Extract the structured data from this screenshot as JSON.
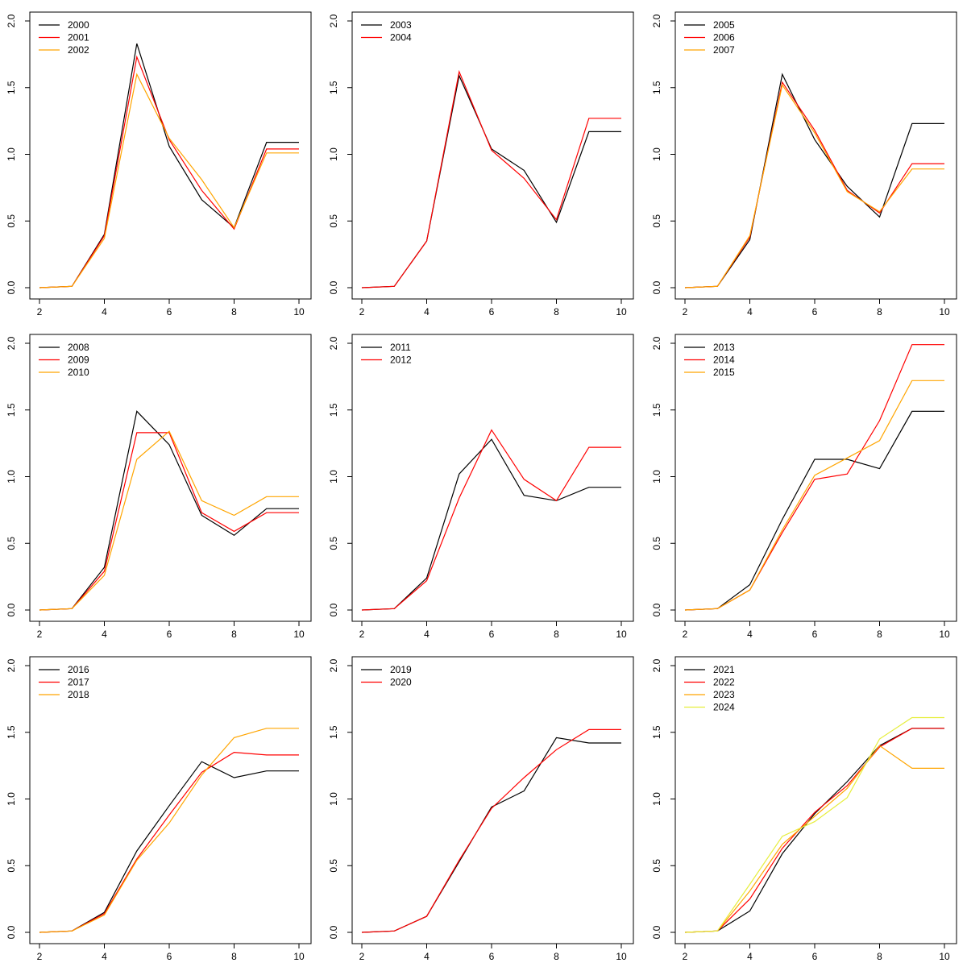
{
  "colors": {
    "black": "#000000",
    "red": "#ff0000",
    "orange": "#ffa500",
    "yellow": "#e6ee3c"
  },
  "chart_data": [
    {
      "type": "line",
      "x": [
        2,
        3,
        4,
        5,
        6,
        7,
        8,
        9,
        10
      ],
      "xlim": [
        2,
        10
      ],
      "ylim": [
        0,
        2
      ],
      "xticks": [
        2,
        4,
        6,
        8,
        10
      ],
      "yticks": [
        "0.0",
        "0.5",
        "1.0",
        "1.5",
        "2.0"
      ],
      "legend_position": "top-left",
      "grid": false,
      "series": [
        {
          "name": "2000",
          "color": "#000000",
          "values": [
            0.0,
            0.01,
            0.4,
            1.83,
            1.06,
            0.66,
            0.45,
            1.09,
            1.09
          ]
        },
        {
          "name": "2001",
          "color": "#ff0000",
          "values": [
            0.0,
            0.01,
            0.39,
            1.73,
            1.11,
            0.73,
            0.44,
            1.04,
            1.04
          ]
        },
        {
          "name": "2002",
          "color": "#ffa500",
          "values": [
            0.0,
            0.01,
            0.37,
            1.6,
            1.12,
            0.81,
            0.45,
            1.01,
            1.01
          ]
        }
      ]
    },
    {
      "type": "line",
      "x": [
        2,
        3,
        4,
        5,
        6,
        7,
        8,
        9,
        10
      ],
      "xlim": [
        2,
        10
      ],
      "ylim": [
        0,
        2
      ],
      "xticks": [
        2,
        4,
        6,
        8,
        10
      ],
      "yticks": [
        "0.0",
        "0.5",
        "1.0",
        "1.5",
        "2.0"
      ],
      "legend_position": "top-left",
      "grid": false,
      "series": [
        {
          "name": "2003",
          "color": "#000000",
          "values": [
            0.0,
            0.01,
            0.35,
            1.59,
            1.04,
            0.88,
            0.49,
            1.17,
            1.17
          ]
        },
        {
          "name": "2004",
          "color": "#ff0000",
          "values": [
            0.0,
            0.01,
            0.35,
            1.62,
            1.03,
            0.82,
            0.51,
            1.27,
            1.27
          ]
        }
      ]
    },
    {
      "type": "line",
      "x": [
        2,
        3,
        4,
        5,
        6,
        7,
        8,
        9,
        10
      ],
      "xlim": [
        2,
        10
      ],
      "ylim": [
        0,
        2
      ],
      "xticks": [
        2,
        4,
        6,
        8,
        10
      ],
      "yticks": [
        "0.0",
        "0.5",
        "1.0",
        "1.5",
        "2.0"
      ],
      "legend_position": "top-left",
      "grid": false,
      "series": [
        {
          "name": "2005",
          "color": "#000000",
          "values": [
            0.0,
            0.01,
            0.36,
            1.6,
            1.11,
            0.76,
            0.53,
            1.23,
            1.23
          ]
        },
        {
          "name": "2006",
          "color": "#ff0000",
          "values": [
            0.0,
            0.01,
            0.38,
            1.54,
            1.18,
            0.73,
            0.56,
            0.93,
            0.93
          ]
        },
        {
          "name": "2007",
          "color": "#ffa500",
          "values": [
            0.0,
            0.01,
            0.39,
            1.52,
            1.16,
            0.72,
            0.57,
            0.89,
            0.89
          ]
        }
      ]
    },
    {
      "type": "line",
      "x": [
        2,
        3,
        4,
        5,
        6,
        7,
        8,
        9,
        10
      ],
      "xlim": [
        2,
        10
      ],
      "ylim": [
        0,
        2
      ],
      "xticks": [
        2,
        4,
        6,
        8,
        10
      ],
      "yticks": [
        "0.0",
        "0.5",
        "1.0",
        "1.5",
        "2.0"
      ],
      "legend_position": "top-left",
      "grid": false,
      "series": [
        {
          "name": "2008",
          "color": "#000000",
          "values": [
            0.0,
            0.01,
            0.32,
            1.49,
            1.24,
            0.71,
            0.56,
            0.76,
            0.76
          ]
        },
        {
          "name": "2009",
          "color": "#ff0000",
          "values": [
            0.0,
            0.01,
            0.29,
            1.33,
            1.33,
            0.73,
            0.59,
            0.73,
            0.73
          ]
        },
        {
          "name": "2010",
          "color": "#ffa500",
          "values": [
            0.0,
            0.01,
            0.26,
            1.13,
            1.34,
            0.82,
            0.71,
            0.85,
            0.85
          ]
        }
      ]
    },
    {
      "type": "line",
      "x": [
        2,
        3,
        4,
        5,
        6,
        7,
        8,
        9,
        10
      ],
      "xlim": [
        2,
        10
      ],
      "ylim": [
        0,
        2
      ],
      "xticks": [
        2,
        4,
        6,
        8,
        10
      ],
      "yticks": [
        "0.0",
        "0.5",
        "1.0",
        "1.5",
        "2.0"
      ],
      "legend_position": "top-left",
      "grid": false,
      "series": [
        {
          "name": "2011",
          "color": "#000000",
          "values": [
            0.0,
            0.01,
            0.24,
            1.02,
            1.28,
            0.86,
            0.82,
            0.92,
            0.92
          ]
        },
        {
          "name": "2012",
          "color": "#ff0000",
          "values": [
            0.0,
            0.01,
            0.22,
            0.84,
            1.35,
            0.98,
            0.82,
            1.22,
            1.22
          ]
        }
      ]
    },
    {
      "type": "line",
      "x": [
        2,
        3,
        4,
        5,
        6,
        7,
        8,
        9,
        10
      ],
      "xlim": [
        2,
        10
      ],
      "ylim": [
        0,
        2
      ],
      "xticks": [
        2,
        4,
        6,
        8,
        10
      ],
      "yticks": [
        "0.0",
        "0.5",
        "1.0",
        "1.5",
        "2.0"
      ],
      "legend_position": "top-left",
      "grid": false,
      "series": [
        {
          "name": "2013",
          "color": "#000000",
          "values": [
            0.0,
            0.01,
            0.19,
            0.68,
            1.13,
            1.13,
            1.06,
            1.49,
            1.49
          ]
        },
        {
          "name": "2014",
          "color": "#ff0000",
          "values": [
            0.0,
            0.01,
            0.15,
            0.58,
            0.98,
            1.02,
            1.42,
            1.99,
            1.99
          ]
        },
        {
          "name": "2015",
          "color": "#ffa500",
          "values": [
            0.0,
            0.01,
            0.15,
            0.6,
            1.01,
            1.14,
            1.27,
            1.72,
            1.72
          ]
        }
      ]
    },
    {
      "type": "line",
      "x": [
        2,
        3,
        4,
        5,
        6,
        7,
        8,
        9,
        10
      ],
      "xlim": [
        2,
        10
      ],
      "ylim": [
        0,
        2
      ],
      "xticks": [
        2,
        4,
        6,
        8,
        10
      ],
      "yticks": [
        "0.0",
        "0.5",
        "1.0",
        "1.5",
        "2.0"
      ],
      "legend_position": "top-left",
      "grid": false,
      "series": [
        {
          "name": "2016",
          "color": "#000000",
          "values": [
            0.0,
            0.01,
            0.15,
            0.61,
            0.95,
            1.28,
            1.16,
            1.21,
            1.21
          ]
        },
        {
          "name": "2017",
          "color": "#ff0000",
          "values": [
            0.0,
            0.01,
            0.14,
            0.55,
            0.88,
            1.2,
            1.35,
            1.33,
            1.33
          ]
        },
        {
          "name": "2018",
          "color": "#ffa500",
          "values": [
            0.0,
            0.01,
            0.13,
            0.54,
            0.82,
            1.18,
            1.46,
            1.53,
            1.53
          ]
        }
      ]
    },
    {
      "type": "line",
      "x": [
        2,
        3,
        4,
        5,
        6,
        7,
        8,
        9,
        10
      ],
      "xlim": [
        2,
        10
      ],
      "ylim": [
        0,
        2
      ],
      "xticks": [
        2,
        4,
        6,
        8,
        10
      ],
      "yticks": [
        "0.0",
        "0.5",
        "1.0",
        "1.5",
        "2.0"
      ],
      "legend_position": "top-left",
      "grid": false,
      "series": [
        {
          "name": "2019",
          "color": "#000000",
          "values": [
            0.0,
            0.01,
            0.12,
            0.53,
            0.94,
            1.06,
            1.46,
            1.42,
            1.42
          ]
        },
        {
          "name": "2020",
          "color": "#ff0000",
          "values": [
            0.0,
            0.01,
            0.12,
            0.54,
            0.93,
            1.16,
            1.37,
            1.52,
            1.52
          ]
        }
      ]
    },
    {
      "type": "line",
      "x": [
        2,
        3,
        4,
        5,
        6,
        7,
        8,
        9,
        10
      ],
      "xlim": [
        2,
        10
      ],
      "ylim": [
        0,
        2
      ],
      "xticks": [
        2,
        4,
        6,
        8,
        10
      ],
      "yticks": [
        "0.0",
        "0.5",
        "1.0",
        "1.5",
        "2.0"
      ],
      "legend_position": "top-left",
      "grid": false,
      "series": [
        {
          "name": "2021",
          "color": "#000000",
          "values": [
            0.0,
            0.01,
            0.16,
            0.59,
            0.89,
            1.13,
            1.4,
            1.53,
            1.53
          ]
        },
        {
          "name": "2022",
          "color": "#ff0000",
          "values": [
            0.0,
            0.01,
            0.25,
            0.63,
            0.9,
            1.1,
            1.39,
            1.53,
            1.53
          ]
        },
        {
          "name": "2023",
          "color": "#ffa500",
          "values": [
            0.0,
            0.01,
            0.31,
            0.66,
            0.87,
            1.08,
            1.4,
            1.23,
            1.23
          ]
        },
        {
          "name": "2024",
          "color": "#e6ee3c",
          "values": [
            0.0,
            0.01,
            0.36,
            0.72,
            0.83,
            1.01,
            1.45,
            1.61,
            1.61
          ]
        }
      ]
    }
  ]
}
